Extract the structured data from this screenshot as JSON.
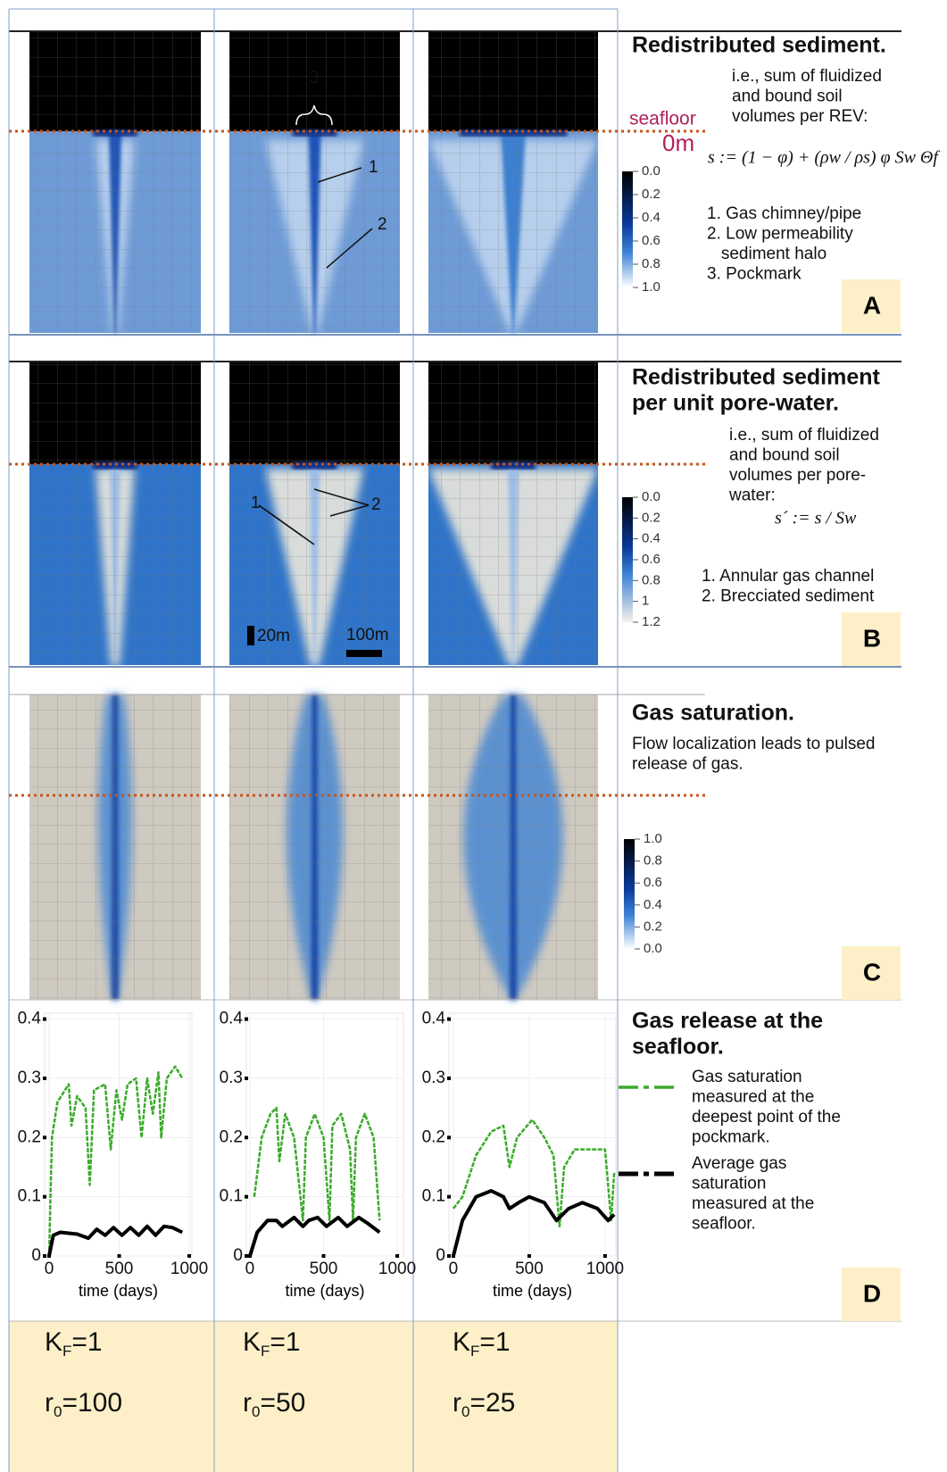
{
  "panels": [
    {
      "letter": "A",
      "title": [
        "Redistributed sediment."
      ],
      "description": [
        "i.e., sum of fluidized",
        "and bound soil",
        "volumes per REV:"
      ],
      "formula": "s := (1 − φ) + (ρw / ρs) φ Sw Θf",
      "items": [
        "1. Gas chimney/pipe",
        "2. Low permeability",
        "   sediment halo",
        "3. Pockmark"
      ],
      "colorbar": {
        "range": [
          0,
          1
        ],
        "ticks": [
          {
            "value": 0,
            "label": "0.0"
          },
          {
            "value": 0.2,
            "label": "0.2"
          },
          {
            "value": 0.4,
            "label": "0.4"
          },
          {
            "value": 0.6,
            "label": "0.6"
          },
          {
            "value": 0.8,
            "label": "0.8"
          },
          {
            "value": 1,
            "label": "1.0"
          }
        ]
      },
      "annotations": {
        "seafloor": "seafloor",
        "depth": "0m",
        "pockmark": "3",
        "chimney": "1",
        "halo": "2"
      }
    },
    {
      "letter": "B",
      "title": [
        "Redistributed sediment",
        "per unit pore-water."
      ],
      "description": [
        "i.e., sum of fluidized",
        "and bound soil",
        "volumes per pore-",
        "water:"
      ],
      "formula": "s´ := s / Sw",
      "items": [
        "1. Annular gas channel",
        "2. Brecciated sediment"
      ],
      "colorbar": {
        "range": [
          0,
          1.2
        ],
        "ticks": [
          {
            "value": 0,
            "label": "0.0"
          },
          {
            "value": 0.2,
            "label": "0.2"
          },
          {
            "value": 0.4,
            "label": "0.4"
          },
          {
            "value": 0.6,
            "label": "0.6"
          },
          {
            "value": 0.8,
            "label": "0.8"
          },
          1,
          {
            "value": 1.2,
            "label": "1.2"
          }
        ]
      },
      "annotations": {
        "channel": "1",
        "breccia": "2",
        "scale_vertical": "20m",
        "scale_horizontal": "100m"
      }
    },
    {
      "letter": "C",
      "title": [
        "Gas saturation."
      ],
      "description": [
        "Flow localization leads to pulsed",
        "release of gas."
      ],
      "colorbar": {
        "range": [
          1,
          0
        ],
        "ticks": [
          {
            "value": 1,
            "label": "1.0"
          },
          {
            "value": 0.8,
            "label": "0.8"
          },
          {
            "value": 0.6,
            "label": "0.6"
          },
          {
            "value": 0.4,
            "label": "0.4"
          },
          {
            "value": 0.2,
            "label": "0.2"
          },
          {
            "value": 0,
            "label": "0.0"
          }
        ]
      }
    },
    {
      "letter": "D",
      "title": [
        "Gas release at the",
        "seafloor."
      ],
      "legend": [
        [
          "Gas saturation",
          "measured at the",
          "deepest point of the",
          "pockmark."
        ],
        [
          "Average gas",
          "saturation",
          "measured at the",
          "seafloor."
        ]
      ]
    }
  ],
  "plots": [
    {
      "xlim": [
        -32,
        1019
      ],
      "ylim": [
        0,
        0.41
      ],
      "xticks": [
        0,
        500,
        1000
      ],
      "yticks": [
        0,
        0.1,
        0.2,
        0.3,
        0.4
      ],
      "x_label": "time (days)",
      "series": [
        {
          "color": "#3aaa2a",
          "x": [
            0,
            20,
            60,
            140,
            160,
            200,
            260,
            290,
            320,
            400,
            440,
            480,
            520,
            560,
            620,
            660,
            700,
            740,
            780,
            800,
            840,
            900,
            950
          ],
          "values": [
            0,
            0.2,
            0.26,
            0.29,
            0.22,
            0.27,
            0.25,
            0.12,
            0.28,
            0.29,
            0.18,
            0.28,
            0.23,
            0.29,
            0.3,
            0.2,
            0.3,
            0.24,
            0.31,
            0.2,
            0.3,
            0.32,
            0.3
          ]
        },
        {
          "color": "#000000",
          "x": [
            0,
            30,
            80,
            200,
            280,
            340,
            400,
            460,
            520,
            580,
            640,
            700,
            760,
            820,
            880,
            950
          ],
          "values": [
            0,
            0.035,
            0.04,
            0.037,
            0.03,
            0.045,
            0.035,
            0.048,
            0.035,
            0.048,
            0.035,
            0.05,
            0.035,
            0.05,
            0.048,
            0.04
          ]
        }
      ]
    },
    {
      "xlim": [
        -24,
        1042
      ],
      "ylim": [
        0,
        0.41
      ],
      "xticks": [
        0,
        500,
        1000
      ],
      "yticks": [
        0,
        0.1,
        0.2,
        0.3,
        0.4
      ],
      "x_label": "time (days)",
      "series": [
        {
          "color": "#3aaa2a",
          "x": [
            30,
            80,
            140,
            180,
            200,
            240,
            300,
            360,
            380,
            440,
            500,
            540,
            560,
            620,
            680,
            700,
            720,
            780,
            840,
            880
          ],
          "values": [
            0.1,
            0.2,
            0.24,
            0.25,
            0.16,
            0.24,
            0.2,
            0.06,
            0.2,
            0.24,
            0.2,
            0.06,
            0.22,
            0.24,
            0.18,
            0.06,
            0.2,
            0.24,
            0.2,
            0.06
          ]
        },
        {
          "color": "#000000",
          "x": [
            0,
            50,
            120,
            180,
            220,
            300,
            360,
            400,
            460,
            520,
            600,
            660,
            740,
            800,
            880
          ],
          "values": [
            0,
            0.04,
            0.06,
            0.06,
            0.05,
            0.065,
            0.05,
            0.06,
            0.065,
            0.05,
            0.065,
            0.05,
            0.065,
            0.055,
            0.04
          ]
        }
      ]
    },
    {
      "xlim": [
        -29,
        1071
      ],
      "ylim": [
        0,
        0.41
      ],
      "xticks": [
        0,
        500,
        1000
      ],
      "yticks": [
        0,
        0.1,
        0.2,
        0.3,
        0.4
      ],
      "x_label": "time (days)",
      "series": [
        {
          "color": "#3aaa2a",
          "x": [
            0,
            60,
            150,
            250,
            330,
            370,
            420,
            520,
            600,
            660,
            700,
            730,
            800,
            1000,
            1040,
            1060
          ],
          "values": [
            0.08,
            0.1,
            0.17,
            0.21,
            0.22,
            0.15,
            0.2,
            0.23,
            0.2,
            0.17,
            0.05,
            0.15,
            0.18,
            0.18,
            0.06,
            0.14
          ]
        },
        {
          "color": "#000000",
          "x": [
            0,
            60,
            150,
            250,
            330,
            370,
            430,
            500,
            600,
            680,
            760,
            850,
            950,
            1020,
            1060
          ],
          "values": [
            0,
            0.06,
            0.1,
            0.11,
            0.1,
            0.08,
            0.09,
            0.1,
            0.09,
            0.06,
            0.08,
            0.09,
            0.08,
            0.06,
            0.07
          ]
        }
      ]
    }
  ],
  "cases": [
    {
      "k_symbol": "K",
      "k_sub": "F",
      "k_value": "=1",
      "r_symbol": "r",
      "r_sub": "0",
      "r_value": "=100"
    },
    {
      "k_symbol": "K",
      "k_sub": "F",
      "k_value": "=1",
      "r_symbol": "r",
      "r_sub": "0",
      "r_value": "=50"
    },
    {
      "k_symbol": "K",
      "k_sub": "F",
      "k_value": "=1",
      "r_symbol": "r",
      "r_sub": "0",
      "r_value": "=25"
    }
  ]
}
